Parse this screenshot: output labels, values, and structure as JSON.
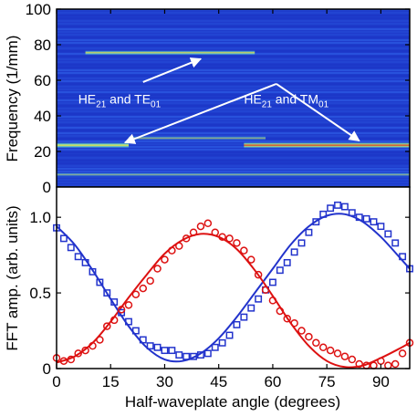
{
  "chart_data": [
    {
      "type": "heatmap",
      "ylabel": "Frequency (1/mm)",
      "ylim": [
        0,
        100
      ],
      "yticks": [
        "0",
        "20",
        "40",
        "60",
        "80",
        "100"
      ],
      "xlim": [
        0,
        98
      ],
      "colorscale": [
        "#1a32c8",
        "#2f63e6",
        "#3aa0e0",
        "#f2d23a",
        "#e04020"
      ],
      "bands": [
        {
          "freq": 75.5,
          "x_start": 8,
          "x_end": 55,
          "intensity": 0.55
        },
        {
          "freq": 23.5,
          "x_start": 0,
          "x_end": 20,
          "intensity": 0.85
        },
        {
          "freq": 23.5,
          "x_start": 52,
          "x_end": 98,
          "intensity": 0.95
        },
        {
          "freq": 27.5,
          "x_start": 20,
          "x_end": 58,
          "intensity": 0.3
        },
        {
          "freq": 7,
          "x_start": 0,
          "x_end": 98,
          "intensity": 0.25
        }
      ],
      "annotations": [
        {
          "parts": [
            [
              "HE",
              ""
            ],
            [
              "21",
              "sub"
            ],
            [
              " and TE",
              ""
            ],
            [
              "01",
              "sub"
            ]
          ],
          "x": 6,
          "y": 47,
          "arrow_to": [
            [
              40,
              72
            ]
          ],
          "arrow_from": [
            [
              24,
              59
            ]
          ]
        },
        {
          "parts": [
            [
              "HE",
              ""
            ],
            [
              "21",
              "sub"
            ],
            [
              " and TM",
              ""
            ],
            [
              "01",
              "sub"
            ]
          ],
          "x": 52,
          "y": 47,
          "arrow_to": [
            [
              19,
              25
            ],
            [
              84,
              26
            ]
          ],
          "arrow_from": [
            [
              61,
              58
            ],
            [
              61,
              58
            ]
          ]
        }
      ]
    },
    {
      "type": "scatter",
      "xlabel": "Half-waveplate angle (degrees)",
      "ylabel": "FFT amp. (arb. units)",
      "xlim": [
        0,
        98
      ],
      "ylim": [
        0,
        1.2
      ],
      "xticks": [
        "0",
        "15",
        "30",
        "45",
        "60",
        "75",
        "90"
      ],
      "yticks": [
        "0",
        "0.5",
        "1.0"
      ],
      "series": [
        {
          "color": "#2233cc",
          "marker": "square",
          "x": [
            0,
            2,
            4,
            6,
            8,
            10,
            12,
            14,
            16,
            18,
            20,
            22,
            24,
            26,
            28,
            30,
            32,
            34,
            36,
            38,
            40,
            42,
            44,
            46,
            48,
            50,
            52,
            54,
            56,
            58,
            60,
            62,
            64,
            66,
            68,
            70,
            72,
            74,
            76,
            78,
            80,
            82,
            84,
            86,
            88,
            90,
            92,
            94,
            96,
            98
          ],
          "y": [
            0.93,
            0.86,
            0.8,
            0.74,
            0.7,
            0.64,
            0.57,
            0.5,
            0.44,
            0.37,
            0.31,
            0.25,
            0.19,
            0.15,
            0.14,
            0.12,
            0.12,
            0.09,
            0.08,
            0.08,
            0.09,
            0.1,
            0.14,
            0.17,
            0.22,
            0.29,
            0.34,
            0.4,
            0.46,
            0.52,
            0.57,
            0.65,
            0.7,
            0.77,
            0.83,
            0.9,
            0.97,
            1.02,
            1.06,
            1.08,
            1.07,
            1.03,
            1.0,
            0.99,
            0.97,
            0.94,
            0.89,
            0.83,
            0.74,
            0.66
          ],
          "fit_x": [
            0,
            5,
            10,
            15,
            20,
            25,
            30,
            35,
            40,
            45,
            50,
            55,
            60,
            65,
            70,
            75,
            80,
            85,
            90,
            95,
            98
          ],
          "fit_y": [
            0.94,
            0.82,
            0.65,
            0.46,
            0.28,
            0.14,
            0.06,
            0.05,
            0.1,
            0.2,
            0.34,
            0.5,
            0.66,
            0.82,
            0.94,
            1.01,
            1.02,
            0.97,
            0.87,
            0.74,
            0.66
          ]
        },
        {
          "color": "#dd1111",
          "marker": "circle",
          "x": [
            0,
            2,
            4,
            6,
            8,
            10,
            12,
            14,
            16,
            18,
            20,
            22,
            24,
            26,
            28,
            30,
            32,
            34,
            36,
            38,
            40,
            42,
            44,
            46,
            48,
            50,
            52,
            54,
            56,
            58,
            60,
            62,
            64,
            66,
            68,
            70,
            72,
            74,
            76,
            78,
            80,
            82,
            84,
            86,
            88,
            90,
            92,
            94,
            96,
            98
          ],
          "y": [
            0.07,
            0.05,
            0.06,
            0.1,
            0.12,
            0.15,
            0.19,
            0.28,
            0.32,
            0.39,
            0.42,
            0.49,
            0.53,
            0.58,
            0.66,
            0.72,
            0.78,
            0.81,
            0.86,
            0.9,
            0.94,
            0.96,
            0.9,
            0.87,
            0.86,
            0.83,
            0.78,
            0.72,
            0.62,
            0.52,
            0.45,
            0.38,
            0.33,
            0.3,
            0.25,
            0.21,
            0.17,
            0.14,
            0.12,
            0.1,
            0.08,
            0.06,
            0.03,
            0.02,
            0.02,
            0.05,
            0.02,
            0.03,
            0.1,
            0.17
          ],
          "fit_x": [
            0,
            5,
            10,
            15,
            20,
            25,
            30,
            35,
            40,
            45,
            50,
            55,
            60,
            65,
            70,
            75,
            80,
            85,
            90,
            95,
            98
          ],
          "fit_y": [
            0.04,
            0.08,
            0.17,
            0.31,
            0.47,
            0.62,
            0.76,
            0.85,
            0.89,
            0.87,
            0.79,
            0.65,
            0.48,
            0.3,
            0.15,
            0.05,
            0.01,
            0.02,
            0.07,
            0.13,
            0.17
          ]
        }
      ]
    }
  ]
}
